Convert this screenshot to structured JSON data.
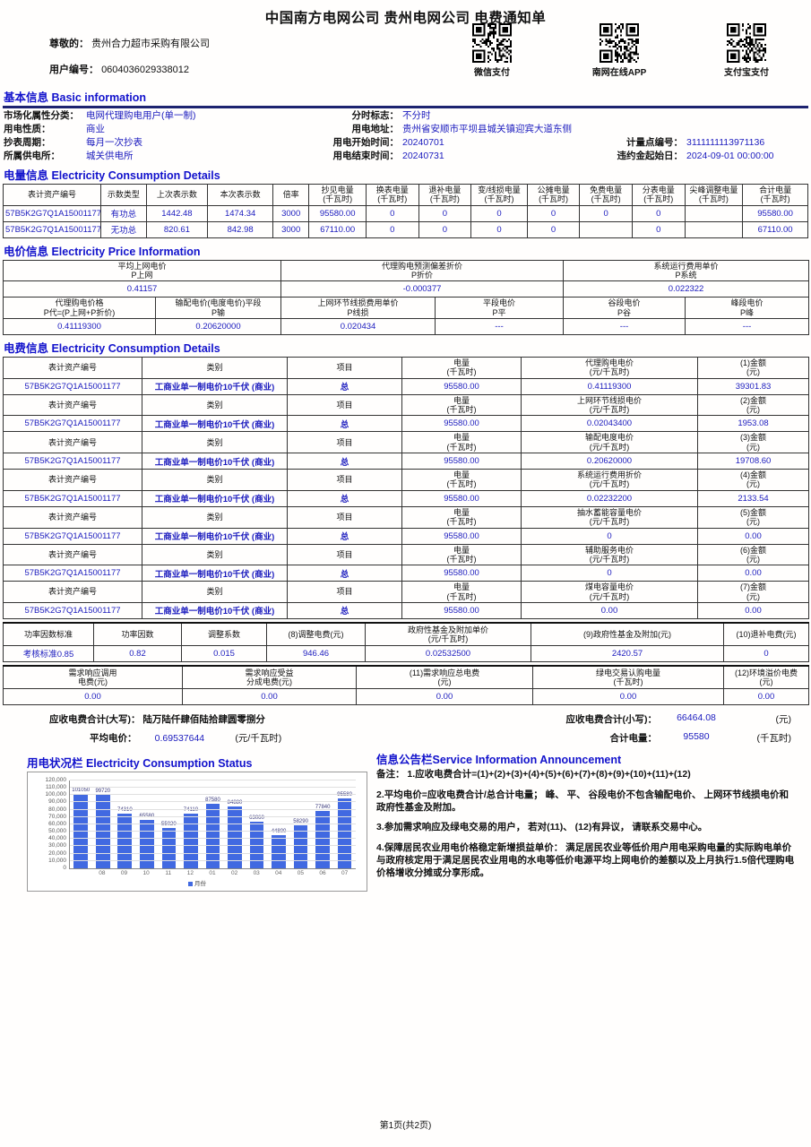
{
  "title": "中国南方电网公司 贵州电网公司 电费通知单",
  "customer": {
    "salutation_label": "尊敬的： ",
    "name": "贵州合力超市采购有限公司",
    "user_no_label": "用户编号： ",
    "user_no": "0604036029338012"
  },
  "payments": [
    {
      "name": "wechat-pay",
      "label": "微信支付"
    },
    {
      "name": "csg-online-app",
      "label": "南网在线APP"
    },
    {
      "name": "alipay",
      "label": "支付宝支付"
    }
  ],
  "sections": {
    "basic": "基本信息 Basic information",
    "consumption": "电量信息 Electricity Consumption Details",
    "price": "电价信息 Electricity Price Information",
    "fee": "电费信息 Electricity Consumption Details",
    "status": "用电状况栏 Electricity Consumption Status",
    "announcement": "信息公告栏Service Information Announcement"
  },
  "basic_info": {
    "rows": [
      [
        {
          "label": "市场化属性分类：",
          "value": "电网代理购电用户(单一制)"
        },
        {
          "label": "分时标志：",
          "value": "不分时"
        },
        null
      ],
      [
        {
          "label": "用电性质：",
          "value": "商业"
        },
        {
          "label": "用电地址：",
          "value": "贵州省安顺市平坝县城关镇迎宾大道东侧"
        },
        null
      ],
      [
        {
          "label": "抄表周期：",
          "value": "每月一次抄表"
        },
        {
          "label": "用电开始时间：",
          "value": "20240701"
        },
        {
          "label": "计量点编号：",
          "value": "3111111113971136"
        }
      ],
      [
        {
          "label": "所属供电所：",
          "value": "城关供电所"
        },
        {
          "label": "用电结束时间：",
          "value": "20240731"
        },
        {
          "label": "违约金起始日：",
          "value": "2024-09-01 00:00:00"
        }
      ]
    ]
  },
  "meter_table": {
    "headers": [
      {
        "label": "表计资产编号"
      },
      {
        "label": "示数类型"
      },
      {
        "label": "上次表示数"
      },
      {
        "label": "本次表示数"
      },
      {
        "label": "倍率"
      },
      {
        "label": "抄见电量",
        "unit": "(千瓦时)"
      },
      {
        "label": "换表电量",
        "unit": "(千瓦时)"
      },
      {
        "label": "退补电量",
        "unit": "(千瓦时)"
      },
      {
        "label": "变/线损电量",
        "unit": "(千瓦时)"
      },
      {
        "label": "公摊电量",
        "unit": "(千瓦时)"
      },
      {
        "label": "免费电量",
        "unit": "(千瓦时)"
      },
      {
        "label": "分表电量",
        "unit": "(千瓦时)"
      },
      {
        "label": "尖峰调整电量",
        "unit": "(千瓦时)"
      },
      {
        "label": "合计电量",
        "unit": "(千瓦时)"
      }
    ],
    "rows": [
      [
        "57B5K2G7Q1A15001177",
        "有功总",
        "1442.48",
        "1474.34",
        "3000",
        "95580.00",
        "0",
        "0",
        "0",
        "0",
        "0",
        "0",
        "",
        "95580.00"
      ],
      [
        "57B5K2G7Q1A15001177",
        "无功总",
        "820.61",
        "842.98",
        "3000",
        "67110.00",
        "0",
        "0",
        "0",
        "0",
        "",
        "0",
        "",
        "67110.00"
      ]
    ]
  },
  "price_info": {
    "top": [
      {
        "name": "平均上网电价",
        "sub": "P上网",
        "value": "0.41157"
      },
      {
        "name": "代理购电预测偏差折价",
        "sub": "P折价",
        "value": "-0.000377"
      },
      {
        "name": "系统运行费用单价",
        "sub": "P系统",
        "value": "0.022322"
      }
    ],
    "bottom": [
      {
        "name": "代理购电价格",
        "sub": "P代=(P上网+P折价)",
        "value": "0.41119300"
      },
      {
        "name": "输配电价(电度电价)平段",
        "sub": "P输",
        "value": "0.20620000"
      },
      {
        "name": "上网环节线损费用单价",
        "sub": "P线损",
        "value": "0.020434"
      },
      {
        "name": "平段电价",
        "sub": "P平",
        "value": "---"
      },
      {
        "name": "谷段电价",
        "sub": "P谷",
        "value": "---"
      },
      {
        "name": "峰段电价",
        "sub": "P峰",
        "value": "---"
      }
    ]
  },
  "fee_table": {
    "h_asset": "表计资产编号",
    "h_category": "类别",
    "h_item": "项目",
    "h_qty_1": "电量",
    "h_qty_2": "(千瓦时)",
    "h_price_unit": "(元/千瓦时)",
    "h_amount_unit": "(元)",
    "row": {
      "asset": "57B5K2G7Q1A15001177",
      "category": "工商业单一制电价10千伏 (商业)",
      "item": "总",
      "qty": "95580.00"
    },
    "pairs": [
      {
        "price_name": "代理购电电价",
        "amount_name": "(1)金额",
        "price": "0.41119300",
        "amount": "39301.83"
      },
      {
        "price_name": "上网环节线损电价",
        "amount_name": "(2)金额",
        "price": "0.02043400",
        "amount": "1953.08"
      },
      {
        "price_name": "输配电度电价",
        "amount_name": "(3)金额",
        "price": "0.20620000",
        "amount": "19708.60"
      },
      {
        "price_name": "系统运行费用折价",
        "amount_name": "(4)金额",
        "price": "0.02232200",
        "amount": "2133.54"
      },
      {
        "price_name": "抽水蓄能容量电价",
        "amount_name": "(5)金额",
        "price": "0",
        "amount": "0.00"
      },
      {
        "price_name": "辅助服务电价",
        "amount_name": "(6)金额",
        "price": "0",
        "amount": "0.00"
      },
      {
        "price_name": "煤电容量电价",
        "amount_name": "(7)金额",
        "price": "0.00",
        "amount": "0.00"
      }
    ]
  },
  "summary_a": {
    "headers": [
      [
        "功率因数标准"
      ],
      [
        "功率因数"
      ],
      [
        "调整系数"
      ],
      [
        "(8)调整电费(元)"
      ],
      [
        "政府性基金及附加单价",
        "(元/千瓦时)"
      ],
      [
        "(9)政府性基金及附加(元)"
      ],
      [
        "(10)退补电费(元)"
      ]
    ],
    "values": [
      "考核标准0.85",
      "0.82",
      "0.015",
      "946.46",
      "0.02532500",
      "2420.57",
      "0"
    ]
  },
  "summary_b": {
    "headers": [
      [
        "需求响应调用",
        "电费(元)"
      ],
      [
        "需求响应受益",
        "分成电费(元)"
      ],
      [
        "(11)需求响应总电费",
        "(元)"
      ],
      [
        "绿电交易认购电量",
        "(千瓦时)"
      ],
      [
        "(12)环境溢价电费",
        "(元)"
      ]
    ],
    "values": [
      "0.00",
      "0.00",
      "0.00",
      "0.00",
      "0.00"
    ]
  },
  "totals": {
    "dx_label": "应收电费合计(大写)： ",
    "dx_value": "陆万陆仟肆佰陆拾肆圆零捌分",
    "xx_label": "应收电费合计(小写)：",
    "xx_value": "66464.08",
    "xx_unit": "(元)",
    "avg_label": "平均电价： ",
    "avg_value": "0.69537644",
    "avg_unit": "(元/千瓦时)",
    "total_label": "合计电量：",
    "total_value": "95580",
    "total_unit": "(千瓦时)"
  },
  "chart_data": {
    "type": "bar",
    "title": "用电状况栏 Electricity Consumption Status",
    "categories": [
      "",
      "08",
      "09",
      "10",
      "11",
      "12",
      "01",
      "02",
      "03",
      "04",
      "05",
      "06",
      "07"
    ],
    "values": [
      101050,
      99720,
      74310,
      65580,
      55020,
      74110,
      87580,
      84880,
      63060,
      44800,
      58290,
      77840,
      95580
    ],
    "xlabel": "",
    "ylabel": "",
    "ylim": [
      0,
      120000
    ],
    "ytick_step": 10000,
    "grid": true,
    "legend": "月份",
    "legend_position": "bottom",
    "bar_color": "#4169e1"
  },
  "announcement": {
    "notes": [
      "备注： 1.应收电费合计=(1)+(2)+(3)+(4)+(5)+(6)+(7)+(8)+(9)+(10)+(11)+(12)",
      "2.平均电价=应收电费合计/总合计电量； 峰、 平、 谷段电价不包含输配电价、 上网环节线损电价和政府性基金及附加。",
      "3.参加需求响应及绿电交易的用户， 若对(11)、 (12)有异议， 请联系交易中心。",
      "4.保障居民农业用电价格稳定新增损益单价： 满足居民农业等低价用户用电采购电量的实际购电单价与政府核定用于满足居民农业用电的水电等低价电源平均上网电价的差额以及上月执行1.5倍代理购电价格增收分摊或分享形成。"
    ]
  },
  "footer": {
    "page": "第1页(共2页)"
  }
}
